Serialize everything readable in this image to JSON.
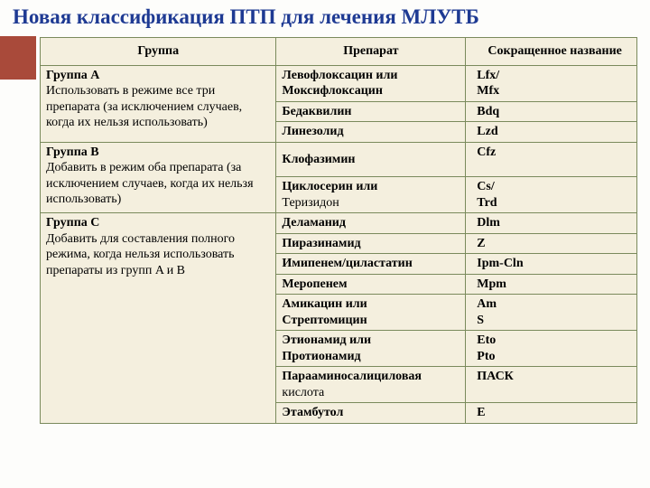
{
  "title": "Новая классификация ПТП для лечения МЛУТБ",
  "colors": {
    "title_color": "#1e3a93",
    "accent_block": "#a94a3a",
    "table_bg": "#f4efde",
    "border": "#7a8a5c"
  },
  "table": {
    "headers": {
      "group": "Группа",
      "drug": "Препарат",
      "abbr": "Сокращенное название"
    },
    "groups": [
      {
        "name_bold": "Группа A",
        "desc": "Использовать в режиме все три препарата (за исключением случаев, когда их нельзя использовать)",
        "rows": [
          {
            "drug_bold": "Левофлоксацин или Моксифлоксацин",
            "abbr_bold": " Lfx/\n Mfx"
          },
          {
            "drug_bold": "Бедаквилин",
            "abbr_bold": " Bdq"
          },
          {
            "drug_bold": "Линезолид",
            "abbr_bold": " Lzd"
          }
        ]
      },
      {
        "name_bold": "Группа B",
        "desc": "Добавить в режим оба препарата (за исключением случаев, когда их нельзя использовать)",
        "rows": [
          {
            "drug_bold": "Клофазимин",
            "abbr_bold": " Cfz",
            "pad": true
          },
          {
            "drug_bold": "Циклосерин или",
            "drug_plain": "Теризидон",
            "abbr_bold": " Cs/\n Trd"
          }
        ]
      },
      {
        "name_bold": "Группа C",
        "desc": "Добавить для составления полного режима, когда нельзя использовать препараты из групп A и B",
        "rows": [
          {
            "drug_bold": "Деламанид",
            "abbr_bold": "Dlm"
          },
          {
            "drug_bold": "Пиразинамид",
            "abbr_bold": "Z"
          },
          {
            "drug_bold": "Имипенем/циластатин",
            "abbr_bold": "Ipm-Cln"
          },
          {
            "drug_bold": "Меропенем",
            "abbr_bold": "Mpm"
          },
          {
            "drug_bold": "Амикацин или\nСтрептомицин",
            "abbr_bold": "Am\nS"
          },
          {
            "drug_bold": "Этионамид или\nПротионамид",
            "abbr_bold": "Eto\nPto"
          },
          {
            "drug_bold": "Парааминосалициловая",
            "drug_plain": "кислота",
            "abbr_bold": "ПАСК"
          },
          {
            "drug_bold": "Этамбутол",
            "abbr_bold": " E"
          }
        ]
      }
    ]
  }
}
